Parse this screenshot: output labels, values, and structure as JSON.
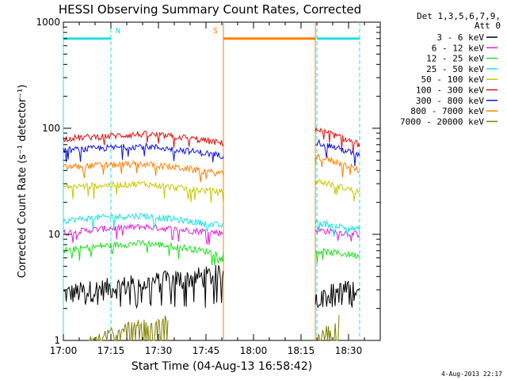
{
  "chart_data": {
    "type": "line",
    "title": "HESSI Observing Summary Count Rates, Corrected",
    "xlabel": "Start Time (04-Aug-13 16:58:42)",
    "ylabel": "Corrected Count Rate (s⁻¹ detector⁻¹)",
    "y_scale": "log",
    "ylim": [
      1,
      1000
    ],
    "xlim_minutes_after_1700": [
      0,
      100
    ],
    "grid": false,
    "legend_placement": "right",
    "x_ticks": [
      "17:00",
      "17:15",
      "17:30",
      "17:45",
      "18:00",
      "18:15",
      "18:30"
    ],
    "x_tick_values": [
      0,
      15,
      30,
      45,
      60,
      75,
      90
    ],
    "y_ticks": [
      "1",
      "10",
      "100",
      "1000"
    ],
    "y_tick_values": [
      1,
      10,
      100,
      1000
    ],
    "legend_header": [
      "Det 1,3,5,6,7,9,",
      "Att 0"
    ],
    "data_gaps_minutes": [
      [
        50.5,
        79.5
      ]
    ],
    "series": [
      {
        "name": "3 - 6 keV",
        "color": "#000000",
        "segments": [
          {
            "t0": 0,
            "t1": 50.5,
            "y": [
              2.6,
              4.0
            ]
          },
          {
            "t0": 79.5,
            "t1": 93.5,
            "y": [
              2.5,
              3.0
            ]
          }
        ]
      },
      {
        "name": "6 - 12 keV",
        "color": "#e020e0",
        "segments": [
          {
            "t0": 0,
            "t1": 50.5,
            "y": [
              10.3,
              11.3,
              11.8,
              11.0,
              10.3
            ]
          },
          {
            "t0": 79.5,
            "t1": 93.5,
            "y": [
              11.0,
              10.0
            ]
          }
        ]
      },
      {
        "name": "12 - 25 keV",
        "color": "#20e020",
        "segments": [
          {
            "t0": 0,
            "t1": 50.5,
            "y": [
              7.0,
              7.8,
              8.3,
              7.5,
              6.5
            ]
          },
          {
            "t0": 79.5,
            "t1": 93.5,
            "y": [
              7.0,
              6.3
            ]
          }
        ]
      },
      {
        "name": "25 - 50 keV",
        "color": "#20e0e0",
        "segments": [
          {
            "t0": 0,
            "t1": 50.5,
            "y": [
              13.5,
              14.5,
              15.0,
              13.5,
              12.0
            ]
          },
          {
            "t0": 79.5,
            "t1": 93.5,
            "y": [
              13.0,
              11.0
            ]
          }
        ]
      },
      {
        "name": "50 - 100 keV",
        "color": "#c8c800",
        "segments": [
          {
            "t0": 0,
            "t1": 50.5,
            "y": [
              28,
              29,
              30,
              27,
              25
            ]
          },
          {
            "t0": 79.5,
            "t1": 93.5,
            "y": [
              32,
              25
            ]
          }
        ]
      },
      {
        "name": "100 - 300 keV",
        "color": "#e01010",
        "segments": [
          {
            "t0": 0,
            "t1": 50.5,
            "y": [
              80,
              84,
              88,
              82,
              72
            ]
          },
          {
            "t0": 79.5,
            "t1": 93.5,
            "y": [
              98,
              70
            ]
          }
        ]
      },
      {
        "name": "300 - 800 keV",
        "color": "#1010e0",
        "segments": [
          {
            "t0": 0,
            "t1": 50.5,
            "y": [
              62,
              65,
              68,
              62,
              55
            ]
          },
          {
            "t0": 79.5,
            "t1": 93.5,
            "y": [
              75,
              55
            ]
          }
        ]
      },
      {
        "name": "800 - 7000 keV",
        "color": "#ff8000",
        "segments": [
          {
            "t0": 0,
            "t1": 50.5,
            "y": [
              43,
              45,
              46,
              42,
              37
            ]
          },
          {
            "t0": 79.5,
            "t1": 93.5,
            "y": [
              55,
              40
            ]
          }
        ]
      },
      {
        "name": "7000 - 20000 keV",
        "color": "#808000",
        "segments": [
          {
            "t0": 8,
            "t1": 33,
            "y": [
              1.0,
              1.7
            ]
          },
          {
            "t0": 80,
            "t1": 87,
            "y": [
              1.0,
              1.6
            ]
          }
        ]
      }
    ],
    "flag_bars": [
      {
        "label": "N",
        "color": "#20e0e0",
        "start_min": 0,
        "end_min": 15
      },
      {
        "label": "S",
        "color": "#ff8000",
        "start_min": 50.5,
        "end_min": 79.5
      },
      {
        "label": "",
        "color": "#20e0e0",
        "start_min": 80,
        "end_min": 93.5
      }
    ],
    "flag_bar_value": 700,
    "markers_minutes": [
      {
        "t": 0,
        "color": "#20e0e0",
        "style": "solid"
      },
      {
        "t": 15,
        "color": "#20e0e0",
        "style": "dashed"
      },
      {
        "t": 50.5,
        "color": "#ff8000",
        "style": "solid"
      },
      {
        "t": 79.5,
        "color": "#ff8000",
        "style": "solid"
      },
      {
        "t": 80,
        "color": "#20e0e0",
        "style": "dashed"
      },
      {
        "t": 93.5,
        "color": "#20e0e0",
        "style": "dashed"
      }
    ]
  },
  "timestamp": "4-Aug-2013 22:17"
}
